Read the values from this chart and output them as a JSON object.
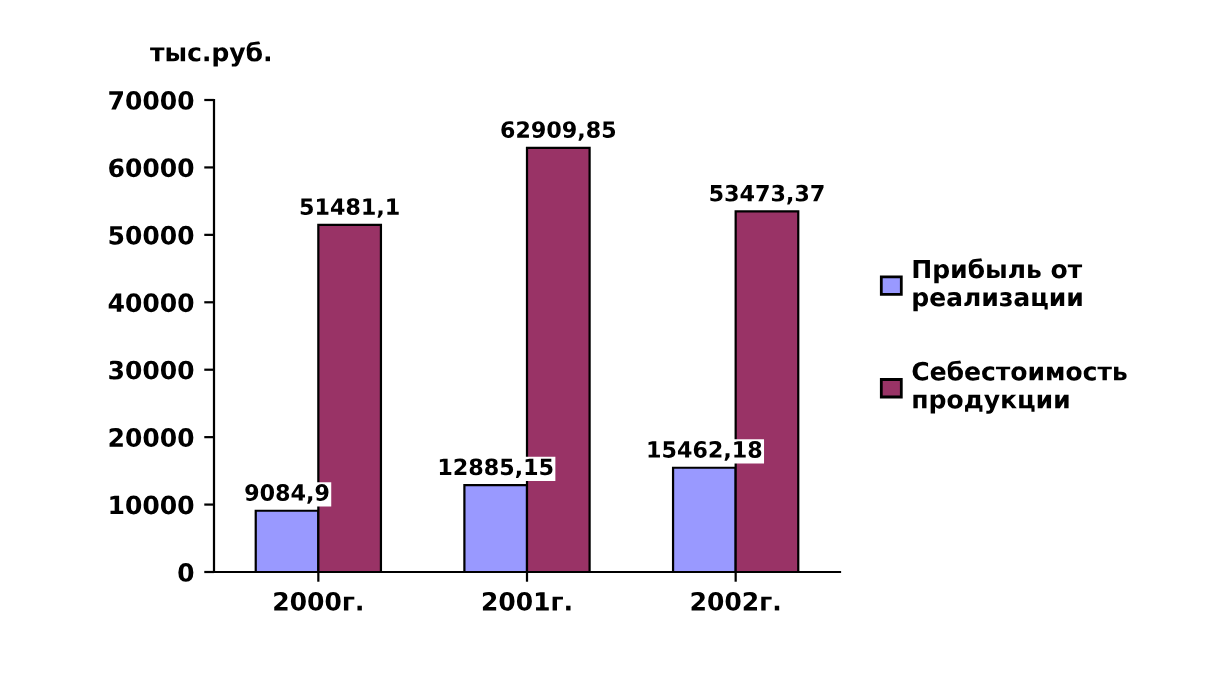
{
  "chart_data": {
    "type": "bar",
    "ylabel": "тыс.руб.",
    "categories": [
      "2000г.",
      "2001г.",
      "2002г."
    ],
    "series": [
      {
        "name": "Прибыль от реализации",
        "color": "#9999ff",
        "values": [
          9084.9,
          12885.15,
          15462.18
        ],
        "value_labels": [
          "9084,9",
          "12885,15",
          "15462,18"
        ]
      },
      {
        "name": "Себестоимость продукции",
        "color": "#993366",
        "values": [
          51481.1,
          62909.85,
          53473.37
        ],
        "value_labels": [
          "51481,1",
          "62909,85",
          "53473,37"
        ]
      }
    ],
    "ylim": [
      0,
      70000
    ],
    "yticks": [
      0,
      10000,
      20000,
      30000,
      40000,
      50000,
      60000,
      70000
    ],
    "legend": "right",
    "grid": false
  }
}
